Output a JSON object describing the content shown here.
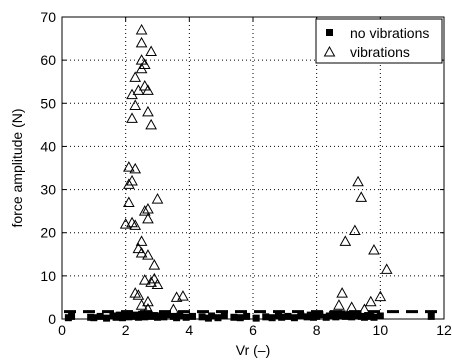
{
  "chart_data": {
    "type": "scatter",
    "xlabel": "Vr (–)",
    "ylabel": "force amplitude (N)",
    "xlim": [
      0,
      12
    ],
    "ylim": [
      0,
      70
    ],
    "xticks": [
      0,
      2,
      4,
      6,
      8,
      10,
      12
    ],
    "yticks": [
      0,
      10,
      20,
      30,
      40,
      50,
      60,
      70
    ],
    "grid": "dotted",
    "legend_position": "top-right",
    "threshold_line": {
      "y": 1.7,
      "style": "dashed"
    },
    "series": [
      {
        "name": "no vibrations",
        "marker": "filled-square",
        "points": [
          [
            0.2,
            0.3
          ],
          [
            0.3,
            0.6
          ],
          [
            0.9,
            0.4
          ],
          [
            1.0,
            0.3
          ],
          [
            1.2,
            0.6
          ],
          [
            1.4,
            0.2
          ],
          [
            1.6,
            0.7
          ],
          [
            1.7,
            0.4
          ],
          [
            1.8,
            0.9
          ],
          [
            1.9,
            0.3
          ],
          [
            2.0,
            0.8
          ],
          [
            2.1,
            0.5
          ],
          [
            2.1,
            1.2
          ],
          [
            2.2,
            0.6
          ],
          [
            2.3,
            0.9
          ],
          [
            2.4,
            0.4
          ],
          [
            2.5,
            0.8
          ],
          [
            2.5,
            1.1
          ],
          [
            2.6,
            0.5
          ],
          [
            2.7,
            0.9
          ],
          [
            2.8,
            0.6
          ],
          [
            2.9,
            0.8
          ],
          [
            3.0,
            0.4
          ],
          [
            3.1,
            0.7
          ],
          [
            3.2,
            0.5
          ],
          [
            3.3,
            1.0
          ],
          [
            3.5,
            0.6
          ],
          [
            3.6,
            0.3
          ],
          [
            3.7,
            0.7
          ],
          [
            3.9,
            0.4
          ],
          [
            4.1,
            0.6
          ],
          [
            4.4,
            0.5
          ],
          [
            4.6,
            0.2
          ],
          [
            4.7,
            0.7
          ],
          [
            4.9,
            0.3
          ],
          [
            5.1,
            0.8
          ],
          [
            5.4,
            0.4
          ],
          [
            5.6,
            0.3
          ],
          [
            5.8,
            0.6
          ],
          [
            6.1,
            0.2
          ],
          [
            6.4,
            0.5
          ],
          [
            6.6,
            0.3
          ],
          [
            6.8,
            0.7
          ],
          [
            6.9,
            0.4
          ],
          [
            7.1,
            0.6
          ],
          [
            7.3,
            0.3
          ],
          [
            7.5,
            0.8
          ],
          [
            7.7,
            0.5
          ],
          [
            7.8,
            0.9
          ],
          [
            7.9,
            0.4
          ],
          [
            8.0,
            0.6
          ],
          [
            8.1,
            1.0
          ],
          [
            8.3,
            0.4
          ],
          [
            8.4,
            0.7
          ],
          [
            8.5,
            1.1
          ],
          [
            8.6,
            0.5
          ],
          [
            8.7,
            0.8
          ],
          [
            8.8,
            1.2
          ],
          [
            8.9,
            0.6
          ],
          [
            9.0,
            0.9
          ],
          [
            9.1,
            0.5
          ],
          [
            9.2,
            0.8
          ],
          [
            9.3,
            1.0
          ],
          [
            9.4,
            0.6
          ],
          [
            9.5,
            0.4
          ],
          [
            9.6,
            0.8
          ],
          [
            9.7,
            0.6
          ],
          [
            9.8,
            0.4
          ],
          [
            10.0,
            0.7
          ],
          [
            11.6,
            0.6
          ]
        ]
      },
      {
        "name": "vibrations",
        "marker": "open-triangle",
        "points": [
          [
            2.5,
            67
          ],
          [
            2.8,
            62
          ],
          [
            2.5,
            64
          ],
          [
            2.5,
            60
          ],
          [
            2.6,
            59
          ],
          [
            2.5,
            58
          ],
          [
            2.3,
            56
          ],
          [
            2.4,
            53
          ],
          [
            2.6,
            54
          ],
          [
            2.7,
            53
          ],
          [
            2.2,
            52
          ],
          [
            2.3,
            49.5
          ],
          [
            2.7,
            48
          ],
          [
            2.2,
            46.5
          ],
          [
            2.8,
            45
          ],
          [
            2.1,
            35.2
          ],
          [
            2.3,
            34.8
          ],
          [
            2.2,
            32
          ],
          [
            2.1,
            31.2
          ],
          [
            3.0,
            27.8
          ],
          [
            2.1,
            27
          ],
          [
            2.7,
            25.5
          ],
          [
            2.6,
            25
          ],
          [
            2.7,
            23.2
          ],
          [
            2.2,
            22.3
          ],
          [
            2.0,
            22
          ],
          [
            2.3,
            21.7
          ],
          [
            2.5,
            18
          ],
          [
            2.4,
            16.3
          ],
          [
            2.5,
            15.3
          ],
          [
            2.7,
            14.8
          ],
          [
            2.9,
            12.5
          ],
          [
            2.6,
            9
          ],
          [
            2.9,
            9.3
          ],
          [
            2.3,
            6
          ],
          [
            2.4,
            5.5
          ],
          [
            2.8,
            8.5
          ],
          [
            3.0,
            8
          ],
          [
            2.7,
            4
          ],
          [
            3.6,
            5
          ],
          [
            3.8,
            5.3
          ],
          [
            2.5,
            3.2
          ],
          [
            2.7,
            2.3
          ],
          [
            3.5,
            2.2
          ],
          [
            9.3,
            31.8
          ],
          [
            9.4,
            28.2
          ],
          [
            9.2,
            20.5
          ],
          [
            8.9,
            18
          ],
          [
            9.8,
            16
          ],
          [
            10.2,
            11.5
          ],
          [
            8.8,
            6
          ],
          [
            10.0,
            5.2
          ],
          [
            9.7,
            4
          ],
          [
            8.7,
            3.2
          ],
          [
            9.1,
            2.7
          ],
          [
            9.5,
            2.2
          ]
        ]
      }
    ]
  }
}
